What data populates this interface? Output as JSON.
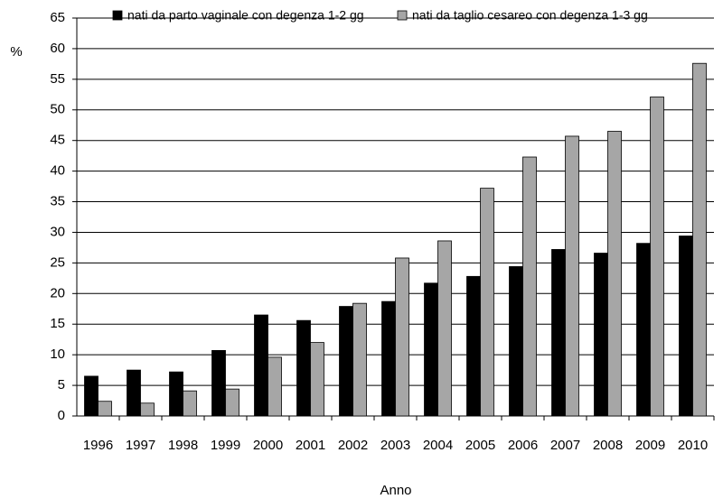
{
  "chart_data": {
    "type": "bar",
    "y_label": "%",
    "x_label": "Anno",
    "categories": [
      "1996",
      "1997",
      "1998",
      "1999",
      "2000",
      "2001",
      "2002",
      "2003",
      "2004",
      "2005",
      "2006",
      "2007",
      "2008",
      "2009",
      "2010"
    ],
    "series": [
      {
        "name": "nati da parto vaginale con degenza 1-2 gg",
        "color": "#000000",
        "values": [
          6.5,
          7.5,
          7.2,
          10.7,
          16.5,
          15.6,
          17.9,
          18.7,
          21.7,
          22.8,
          24.4,
          27.2,
          26.6,
          28.2,
          29.4
        ]
      },
      {
        "name": "nati da taglio cesareo con degenza 1-3 gg",
        "color": "#a6a6a6",
        "values": [
          2.4,
          2.1,
          4.1,
          4.4,
          9.6,
          12.0,
          18.4,
          25.8,
          28.6,
          37.2,
          42.3,
          45.7,
          46.5,
          52.1,
          57.6
        ]
      }
    ],
    "ylim": [
      0,
      65
    ],
    "yticks": [
      0,
      5,
      10,
      15,
      20,
      25,
      30,
      35,
      40,
      45,
      50,
      55,
      60,
      65
    ],
    "grid": true
  }
}
